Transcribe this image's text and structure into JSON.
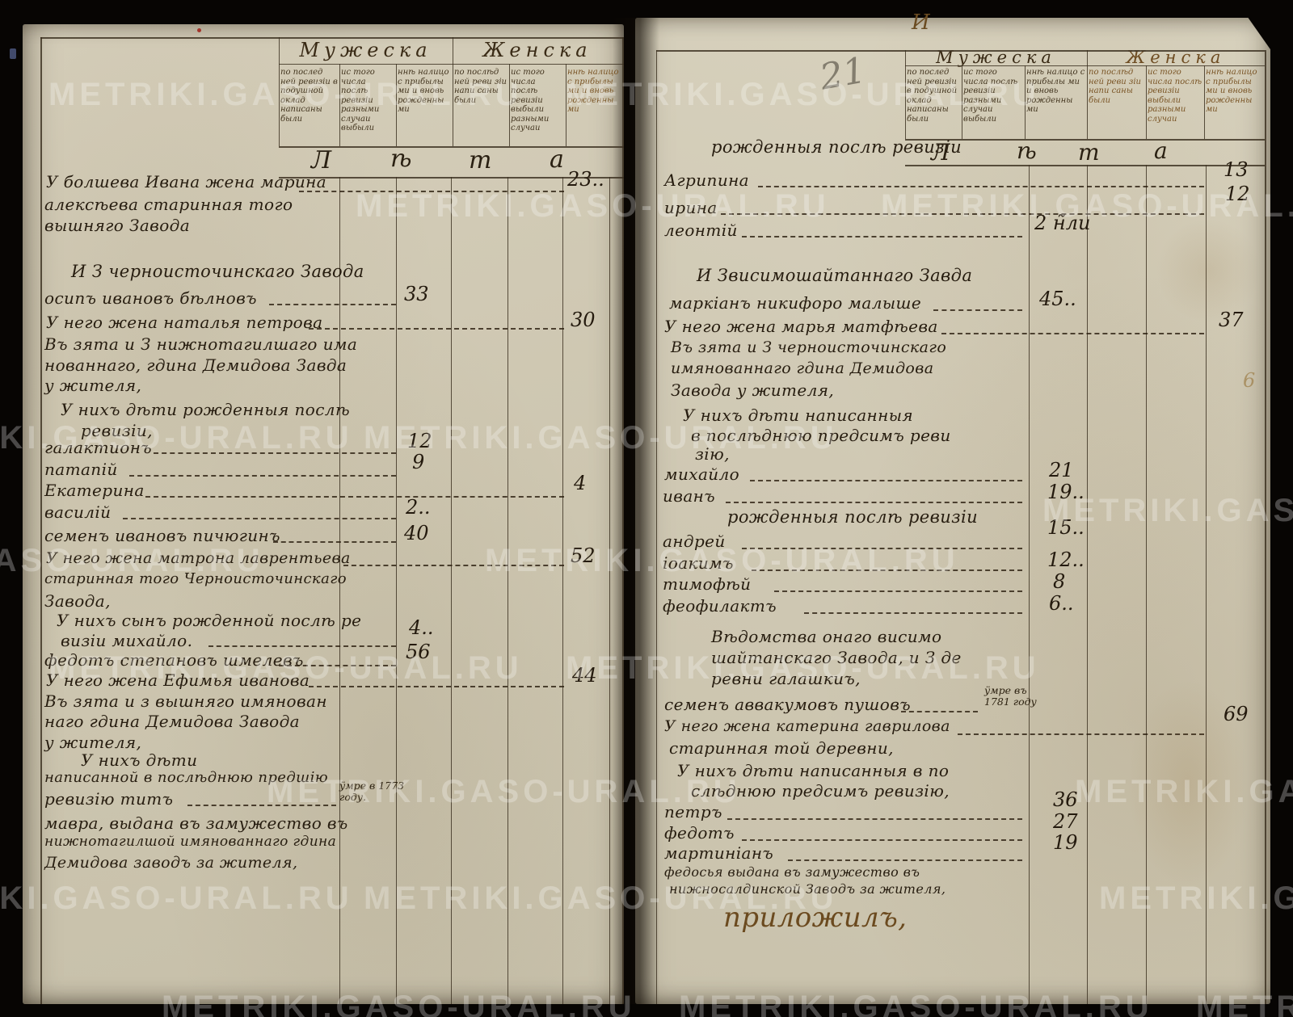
{
  "watermark_text": "METRIKI.GASO-URAL.RU",
  "marks": {
    "page_number": "21",
    "folio_mark": "И",
    "stray_mark": "6"
  },
  "table_header": {
    "male_label": "Мужеска",
    "female_label": "Женска",
    "leta_letters": [
      "Л",
      "ѣ",
      "т",
      "а"
    ],
    "subcols": [
      "по послед ней ревизіи в подушной оклад написаны были",
      "ис того числа послѣ ревизіи разными случаи выбыли",
      "ннѣ налицо с прибылы ми и вновь рожденны ми",
      "по послѣд ней реви зіи напи саны были",
      "ис того числа послѣ ревизіи выбыли разными случаи",
      "ннѣ налицо с прибылы ми и вновь рожденны ми"
    ]
  },
  "left_page": {
    "rows": [
      "У болшева Ивана жена марина",
      "алексѣева старинная того",
      "вышняго Завода",
      "И З черноисточинскаго Завода",
      "осипъ ивановъ бѣлновъ",
      "У него жена наталья петрова",
      "Въ зята и З нижнотагилшаго има",
      "нованнаго, гдина Демидова Завда",
      "у жителя,",
      "У нихъ дѣти рожденныя послѣ",
      "ревизіи,",
      "галактионъ",
      "патапій",
      "Екатерина",
      "василій",
      "семенъ ивановъ пичюгинъ",
      "У него жена матрона лаврентьева",
      "старинная того Черноисточинскаго",
      "Завода,",
      "У нихъ сынъ рожденной послѣ ре",
      "визіи михайло.",
      "федотъ степановъ шмелевъ",
      "У него жена Ефимья иванова",
      "Въ зята и з вышняго имянован",
      "наго гдина Демидова Завода",
      "у жителя,",
      "У нихъ дѣти",
      "написанной в послѣднюю предшію",
      "ревизію титъ",
      "мавра, выдана въ замужество въ",
      "нижнотагилшой имянованнаго гдина",
      "Демидова заводъ за жителя,"
    ],
    "male_ages": [
      "33",
      "12",
      "9",
      "2..",
      "40",
      "4..",
      "56"
    ],
    "female_ages": [
      "23..",
      "30",
      "4",
      "52",
      "44"
    ],
    "margin_note": [
      "ӱмре в 1773",
      "году."
    ]
  },
  "right_page": {
    "rows": [
      "рожденныя послѣ ревизіи",
      "Агрипина",
      "ирина",
      "леонтій",
      "И Звисимошайтаннаго Завда",
      "маркіанъ никифоро малыше",
      "У него жена марья матфѣева",
      "Въ зята и З черноисточинскаго",
      "имянованнаго гдина Демидова",
      "Завода у жителя,",
      "У нихъ дѣти написанныя",
      "в послѣднюю предсимъ реви",
      "зію,",
      "михайло",
      "иванъ",
      "рожденныя послѣ ревизіи",
      "андрей",
      "іоакимъ",
      "тимофѣй",
      "феофилактъ",
      "Вѣдомства онаго висимо",
      "шайтанскаго Завода, и З де",
      "ревни галашкиъ,",
      "семенъ аввакумовъ пушовъ",
      "У него жена катерина гаврилова",
      "старинная той деревни,",
      "У нихъ дѣти написанныя в по",
      "слѣднюю предсимъ ревизію,",
      "петръ",
      "федотъ",
      "мартиніанъ",
      "федосья выдана въ замужество въ",
      "нижносалдинской Заводъ за жителя,",
      "приложилъ,"
    ],
    "male_ages": [
      "2 н̃ли",
      "45..",
      "21",
      "19..",
      "15..",
      "12..",
      "8",
      "6..",
      "36",
      "27",
      "19"
    ],
    "female_ages": [
      "13",
      "12",
      "37",
      "69"
    ],
    "margin_note": [
      "ӱмре въ",
      "1781 году"
    ]
  }
}
